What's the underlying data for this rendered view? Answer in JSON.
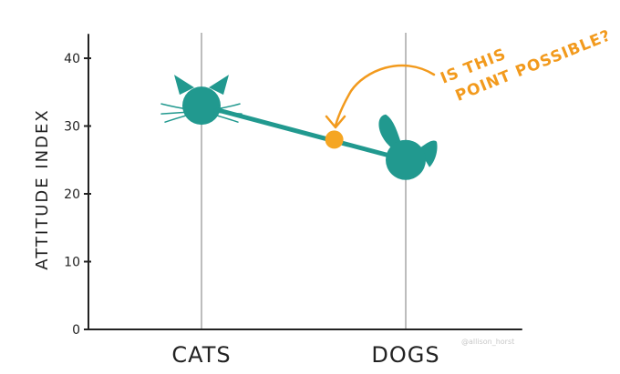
{
  "chart_data": {
    "type": "line",
    "categories": [
      "CATS",
      "DOGS"
    ],
    "values": [
      33,
      25
    ],
    "ylabel": "ATTITUDE INDEX",
    "xlabel": "",
    "title": "",
    "ylim": [
      0,
      40
    ],
    "yticks": [
      0,
      10,
      20,
      30,
      40
    ],
    "grid": "vertical lines at categories",
    "line_color": "#21998f",
    "marker_icons": [
      "cat-head-icon",
      "dog-head-icon"
    ],
    "highlight_point": {
      "x": 1.65,
      "y": 28,
      "color": "#f5a623"
    },
    "annotation": {
      "lines": [
        "IS THIS",
        "POINT POSSIBLE?"
      ],
      "color": "#f29a1d"
    },
    "credit": "@allison_horst"
  }
}
